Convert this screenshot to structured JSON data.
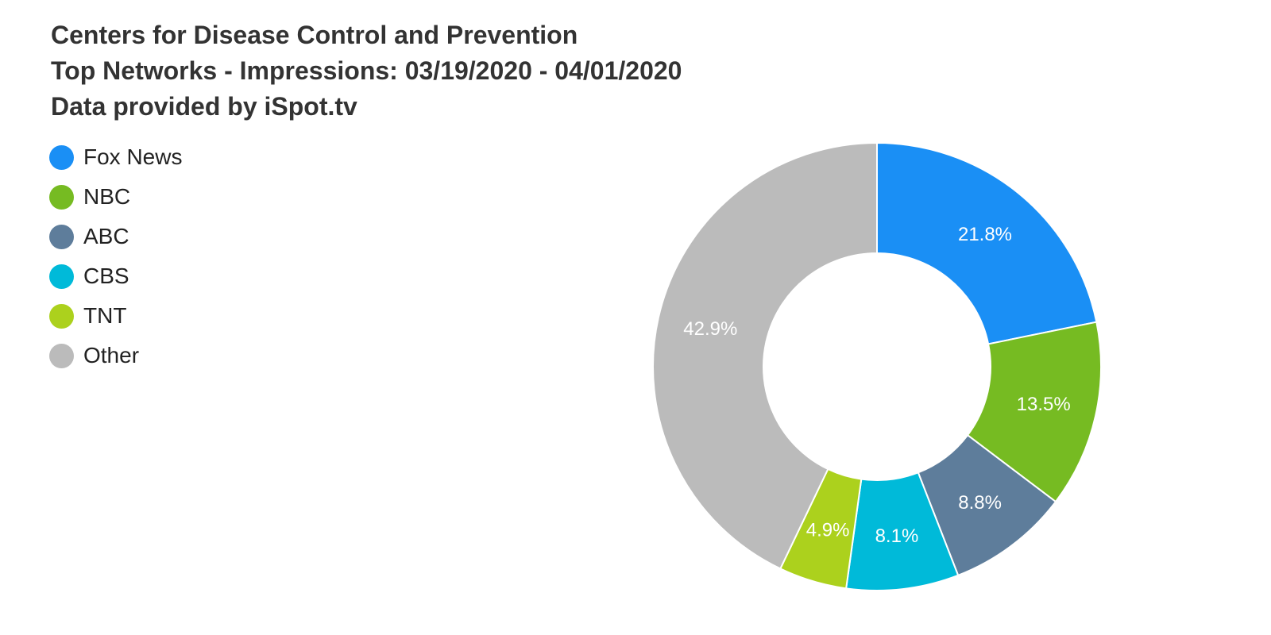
{
  "chart_data": {
    "type": "pie",
    "variant": "donut",
    "title": "Centers for Disease Control and Prevention",
    "subtitle_lines": [
      "Top Networks - Impressions: 03/19/2020 - 04/01/2020",
      "Data provided by iSpot.tv"
    ],
    "legend_position": "top-left",
    "slices": [
      {
        "label": "Fox News",
        "value": 21.8,
        "display": "21.8%",
        "color": "#1a8ff5"
      },
      {
        "label": "NBC",
        "value": 13.5,
        "display": "13.5%",
        "color": "#76bb22"
      },
      {
        "label": "ABC",
        "value": 8.8,
        "display": "8.8%",
        "color": "#5e7d9b"
      },
      {
        "label": "CBS",
        "value": 8.1,
        "display": "8.1%",
        "color": "#00bad9"
      },
      {
        "label": "TNT",
        "value": 4.9,
        "display": "4.9%",
        "color": "#acd11d"
      },
      {
        "label": "Other",
        "value": 42.9,
        "display": "42.9%",
        "color": "#bbbbbb"
      }
    ]
  }
}
